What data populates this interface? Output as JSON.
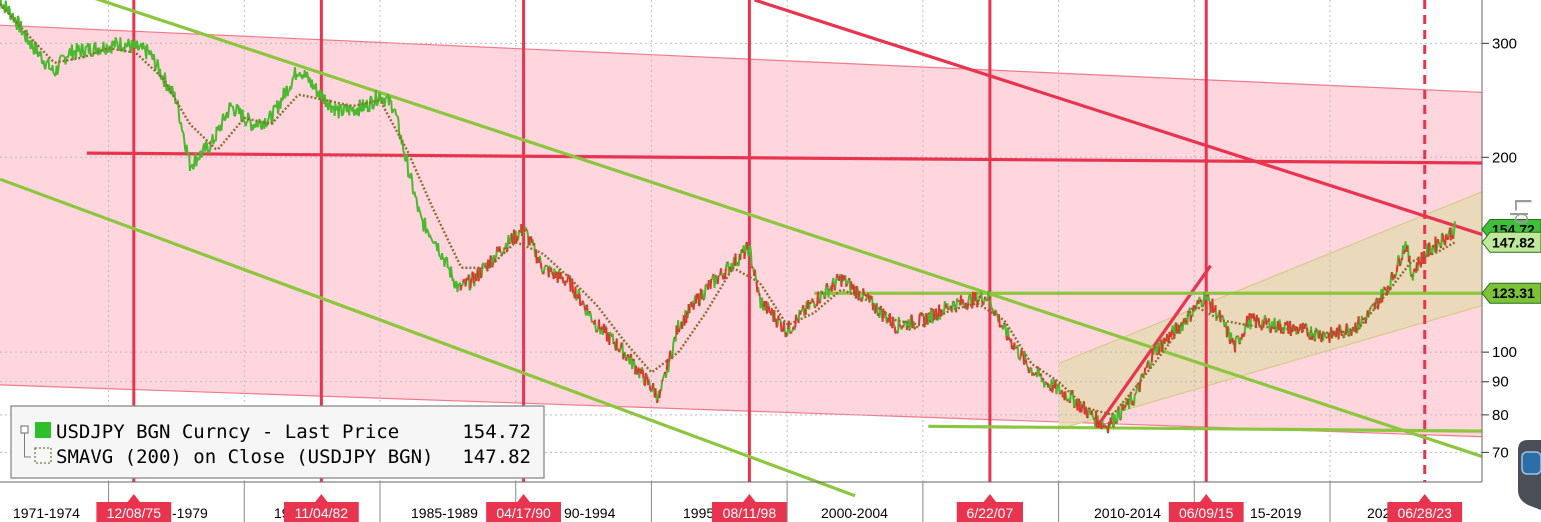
{
  "chart_data": {
    "type": "line",
    "title": "",
    "xlabel": "",
    "ylabel": "",
    "y_scale": "log",
    "ylim": [
      63,
      350
    ],
    "xlim": [
      1971.0,
      2025.6
    ],
    "y_ticks": [
      300,
      200,
      100,
      90,
      80,
      70
    ],
    "x_period_labels": [
      "1971-1974",
      "-1979",
      "19",
      "1985-1989",
      "90-1994",
      "1995",
      "2000-2004",
      "0",
      "2010-2014",
      "15-2019",
      "202"
    ],
    "grid": true,
    "legend_position": "bottom-left",
    "series": [
      {
        "name": "USDJPY BGN Curncy - Last Price",
        "legend_value": "154.72",
        "color": "#4cb830",
        "x": [
          1971.0,
          1971.5,
          1972.0,
          1973.0,
          1973.5,
          1974.5,
          1975.5,
          1976.5,
          1977.5,
          1978.0,
          1978.8,
          1979.5,
          1980.3,
          1981.0,
          1982.0,
          1982.8,
          1983.5,
          1984.5,
          1985.0,
          1985.5,
          1986.0,
          1986.5,
          1987.0,
          1987.9,
          1988.5,
          1989.5,
          1990.3,
          1991.0,
          1992.0,
          1993.0,
          1994.0,
          1995.3,
          1996.0,
          1997.0,
          1998.6,
          1999.0,
          2000.0,
          2001.0,
          2002.0,
          2003.0,
          2004.0,
          2005.0,
          2006.0,
          2007.4,
          2008.0,
          2008.9,
          2009.5,
          2010.5,
          2011.5,
          2011.8,
          2012.8,
          2013.5,
          2014.5,
          2015.4,
          2016.0,
          2016.5,
          2017.0,
          2018.0,
          2019.0,
          2020.0,
          2021.0,
          2021.5,
          2022.3,
          2022.8,
          2023.0,
          2023.5,
          2024.0,
          2024.6
        ],
        "values": [
          350,
          330,
          305,
          270,
          290,
          295,
          300,
          290,
          245,
          195,
          210,
          240,
          225,
          230,
          275,
          250,
          235,
          240,
          250,
          240,
          195,
          160,
          150,
          125,
          130,
          145,
          155,
          135,
          128,
          110,
          100,
          85,
          110,
          125,
          145,
          120,
          108,
          120,
          130,
          120,
          110,
          112,
          118,
          122,
          108,
          95,
          90,
          85,
          78,
          77,
          85,
          100,
          110,
          122,
          112,
          102,
          112,
          110,
          108,
          106,
          110,
          115,
          130,
          148,
          132,
          142,
          148,
          154.72
        ]
      },
      {
        "name": "SMAVG (200)  on Close (USDJPY BGN)",
        "legend_value": "147.82",
        "color": "#8a6d2f",
        "x": [
          1971.0,
          1972.0,
          1973.0,
          1974.0,
          1975.0,
          1976.0,
          1977.0,
          1978.0,
          1979.0,
          1980.0,
          1981.0,
          1982.0,
          1983.0,
          1984.0,
          1985.0,
          1986.0,
          1987.0,
          1988.0,
          1989.0,
          1990.0,
          1991.0,
          1992.0,
          1993.0,
          1994.0,
          1995.0,
          1996.0,
          1997.0,
          1998.0,
          1999.0,
          2000.0,
          2001.0,
          2002.0,
          2003.0,
          2004.0,
          2005.0,
          2006.0,
          2007.0,
          2008.0,
          2009.0,
          2010.0,
          2011.0,
          2012.0,
          2013.0,
          2014.0,
          2015.0,
          2016.0,
          2017.0,
          2018.0,
          2019.0,
          2020.0,
          2021.0,
          2022.0,
          2023.0,
          2024.0,
          2024.6
        ],
        "values": [
          345,
          310,
          280,
          285,
          295,
          290,
          265,
          225,
          205,
          230,
          225,
          250,
          245,
          240,
          245,
          205,
          165,
          135,
          135,
          148,
          142,
          130,
          118,
          104,
          93,
          100,
          115,
          135,
          128,
          110,
          115,
          125,
          120,
          112,
          110,
          116,
          119,
          112,
          96,
          90,
          82,
          80,
          90,
          102,
          118,
          112,
          110,
          109,
          108,
          107,
          108,
          122,
          138,
          143,
          147.82
        ]
      }
    ],
    "annotations": {
      "date_flags": [
        {
          "label": "12/08/75",
          "x": 1975.93,
          "style": "solid"
        },
        {
          "label": "11/04/82",
          "x": 1982.84,
          "style": "solid"
        },
        {
          "label": "04/17/90",
          "x": 1990.29,
          "style": "solid"
        },
        {
          "label": "08/11/98",
          "x": 1998.61,
          "style": "solid"
        },
        {
          "label": "6/22/07",
          "x": 2007.47,
          "style": "solid"
        },
        {
          "label": "06/09/15",
          "x": 2015.44,
          "style": "solid"
        },
        {
          "label": "06/28/23",
          "x": 2023.49,
          "style": "dashed"
        }
      ],
      "price_tags": [
        {
          "label": "154.72",
          "value": 154.72
        },
        {
          "label": "147.82",
          "value": 147.82
        },
        {
          "label": "123.31",
          "value": 123.31
        }
      ],
      "trend_lines": [
        {
          "color": "#e8344f",
          "points": [
            [
              1974.2,
              203
            ],
            [
              2025.6,
              196
            ]
          ]
        },
        {
          "color": "#e8344f",
          "points": [
            [
              1998.8,
              350
            ],
            [
              2025.6,
              152
            ]
          ]
        },
        {
          "color": "#e8344f",
          "points": [
            [
              2011.4,
              76.5
            ],
            [
              2015.6,
              136
            ]
          ]
        },
        {
          "color": "#8cc63f",
          "points": [
            [
              1973.8,
              360
            ],
            [
              2025.6,
              69
            ]
          ]
        },
        {
          "color": "#8cc63f",
          "points": [
            [
              1971.0,
              185
            ],
            [
              2002.5,
              60
            ]
          ]
        },
        {
          "color": "#8cc63f",
          "points": [
            [
              2001.0,
              123.31
            ],
            [
              2025.6,
              123.31
            ]
          ]
        },
        {
          "color": "#8cc63f",
          "points": [
            [
              2005.2,
              76.8
            ],
            [
              2025.6,
              75.5
            ]
          ]
        }
      ],
      "channels": [
        {
          "name": "long-term descending channel",
          "color": "#ffd6de",
          "upper": [
            [
              1971.0,
              320
            ],
            [
              2025.6,
              252
            ]
          ],
          "lower": [
            [
              1971.0,
              89
            ],
            [
              2025.6,
              74
            ]
          ]
        },
        {
          "name": "rising channel",
          "color": "#e6d9b5",
          "upper": [
            [
              2010.0,
              96
            ],
            [
              2025.6,
              177
            ]
          ],
          "lower": [
            [
              2010.0,
              76
            ],
            [
              2025.6,
              118
            ]
          ]
        }
      ]
    }
  }
}
